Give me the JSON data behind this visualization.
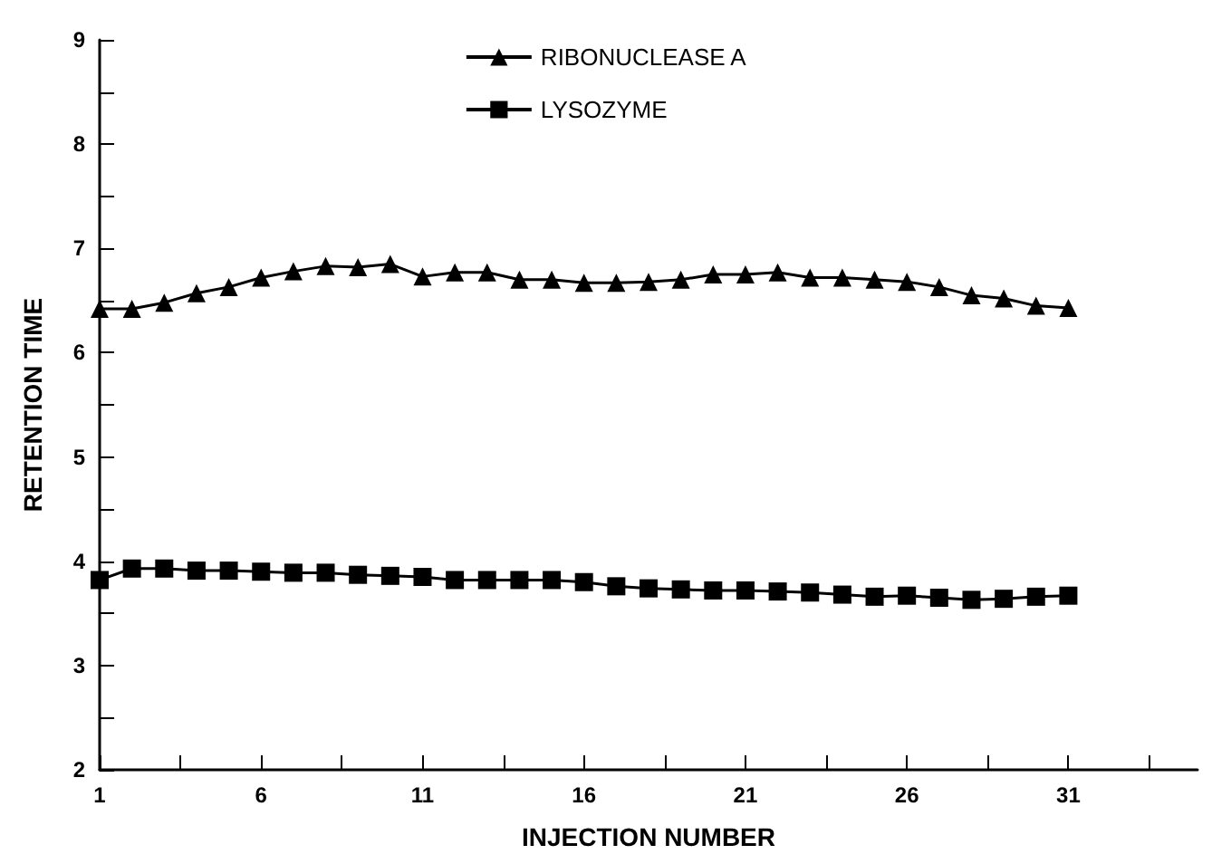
{
  "chart_data": {
    "type": "line",
    "xlabel": "INJECTION NUMBER",
    "ylabel": "RETENTION TIME",
    "x": [
      1,
      2,
      3,
      4,
      5,
      6,
      7,
      8,
      9,
      10,
      11,
      12,
      13,
      14,
      15,
      16,
      17,
      18,
      19,
      20,
      21,
      22,
      23,
      24,
      25,
      26,
      27,
      28,
      29,
      30,
      31
    ],
    "series": [
      {
        "name": "RIBONUCLEASE A",
        "color": "#000000",
        "marker": "triangle",
        "values": [
          6.42,
          6.42,
          6.48,
          6.57,
          6.63,
          6.72,
          6.78,
          6.83,
          6.82,
          6.85,
          6.73,
          6.77,
          6.77,
          6.7,
          6.7,
          6.67,
          6.67,
          6.68,
          6.7,
          6.75,
          6.75,
          6.77,
          6.72,
          6.72,
          6.7,
          6.68,
          6.63,
          6.55,
          6.52,
          6.45,
          6.43
        ]
      },
      {
        "name": "LYSOZYME",
        "color": "#000000",
        "marker": "square",
        "values": [
          3.82,
          3.93,
          3.93,
          3.91,
          3.91,
          3.9,
          3.89,
          3.89,
          3.87,
          3.86,
          3.85,
          3.82,
          3.82,
          3.82,
          3.82,
          3.8,
          3.76,
          3.74,
          3.73,
          3.72,
          3.72,
          3.71,
          3.7,
          3.68,
          3.66,
          3.67,
          3.65,
          3.63,
          3.64,
          3.66,
          3.67
        ]
      }
    ],
    "xlim": [
      1,
      35
    ],
    "xticks": [
      1,
      {
        "value": 3.5,
        "label": null
      },
      6,
      {
        "value": 8.5,
        "label": null
      },
      11,
      {
        "value": 13.5,
        "label": null
      },
      16,
      {
        "value": 18.5,
        "label": null
      },
      21,
      {
        "value": 23.5,
        "label": null
      },
      26,
      {
        "value": 28.5,
        "label": null
      },
      31,
      {
        "value": 33.5,
        "label": null
      }
    ],
    "ylim": [
      2,
      9
    ],
    "yticks": [
      2,
      {
        "value": 2.5,
        "label": null
      },
      3,
      {
        "value": 3.5,
        "label": null
      },
      4,
      {
        "value": 4.5,
        "label": null
      },
      5,
      {
        "value": 5.5,
        "label": null
      },
      6,
      {
        "value": 6.5,
        "label": null
      },
      7,
      {
        "value": 7.5,
        "label": null
      },
      8,
      {
        "value": 8.5,
        "label": null
      },
      9
    ],
    "legend": "top",
    "grid": false,
    "line_style": "solid"
  }
}
